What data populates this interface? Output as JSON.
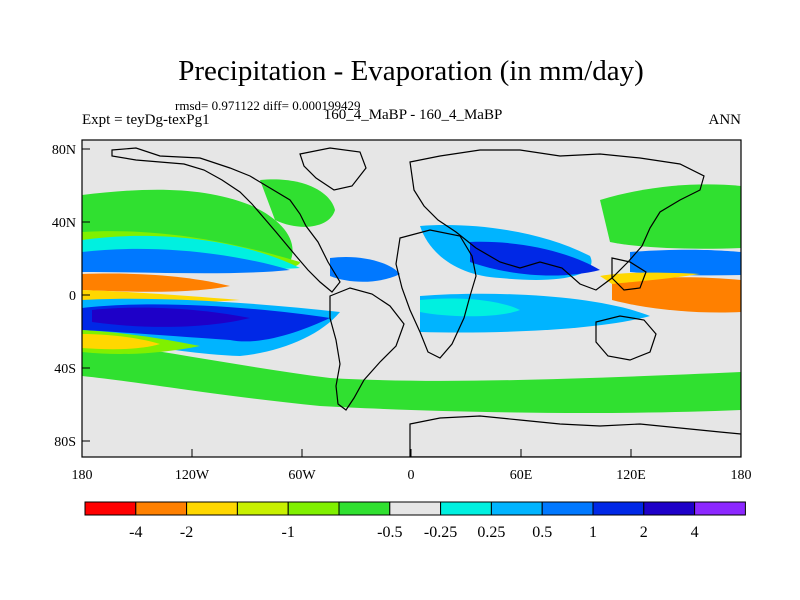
{
  "title": "Precipitation - Evaporation (in mm/day)",
  "stats": "rmsd= 0.971122 diff= 0.000199429",
  "expt": "Expt = teyDg-texPg1",
  "case": "160_4_MaBP - 160_4_MaBP",
  "season": "ANN",
  "lat_ticks": [
    "80N",
    "40N",
    "0",
    "40S",
    "80S"
  ],
  "lon_ticks": [
    "180",
    "120W",
    "60W",
    "0",
    "60E",
    "120E",
    "180"
  ],
  "colorbar": {
    "colors": [
      "#ff0000",
      "#ff8000",
      "#ffd700",
      "#c8f000",
      "#80f000",
      "#30e030",
      "#e6e6e6",
      "#00f0e0",
      "#00b4ff",
      "#0078ff",
      "#0028e6",
      "#1e00c8",
      "#8c28ff"
    ],
    "labels": [
      "-4",
      "-2",
      "-1",
      "-0.5",
      "-0.25",
      "0.25",
      "0.5",
      "1",
      "2",
      "4"
    ]
  },
  "chart_data": {
    "type": "heatmap",
    "title": "Precipitation - Evaporation (in mm/day)",
    "units": "mm/day",
    "xlim": [
      -180,
      180
    ],
    "ylim": [
      -90,
      90
    ],
    "x_tick_values": [
      -180,
      -120,
      -60,
      0,
      60,
      120,
      180
    ],
    "y_tick_values": [
      80,
      40,
      0,
      -40,
      -80
    ],
    "levels": [
      -4,
      -2,
      -1,
      -0.5,
      -0.25,
      0.25,
      0.5,
      1,
      2,
      4
    ]
  }
}
